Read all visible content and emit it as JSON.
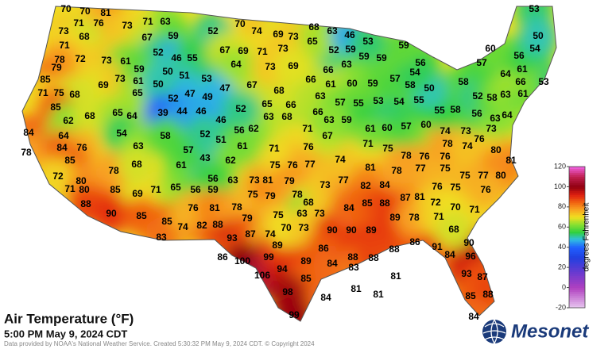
{
  "map": {
    "title": "Air Temperature (°F)",
    "subtitle": "5:00 PM May 9, 2024 CDT",
    "credit": "Data provided by NOAA's National Weather Service. Created 5:30:32 PM May 9, 2024 CDT. © Copyright 2024",
    "brand": "Mesonet",
    "colorbar": {
      "label": "degrees Fahrenheit",
      "lim": [
        -20,
        120
      ],
      "ticks": [
        -20,
        0,
        20,
        40,
        60,
        80,
        100,
        120
      ]
    },
    "stations": {
      "values": [
        70,
        70,
        81,
        71,
        76,
        73,
        71,
        63,
        73,
        68,
        67,
        59,
        71,
        72,
        78,
        73,
        61,
        52,
        46,
        55,
        79,
        69,
        73,
        61,
        59,
        50,
        51,
        53,
        85,
        71,
        75,
        68,
        65,
        50,
        52,
        47,
        49,
        85,
        62,
        68,
        65,
        64,
        39,
        44,
        46,
        46,
        84,
        64,
        54,
        78,
        84,
        76,
        85,
        63,
        58,
        72,
        80,
        71,
        80,
        85,
        69,
        71,
        65,
        56,
        59,
        78,
        68,
        61,
        43,
        57,
        52,
        51,
        62,
        63,
        56,
        73,
        88,
        90,
        85,
        85,
        74,
        82,
        88,
        83,
        76,
        81,
        78,
        79,
        93,
        87,
        74,
        75,
        79,
        75,
        81,
        75,
        76,
        77,
        71,
        76,
        79,
        78,
        68,
        63,
        73,
        86,
        100,
        99,
        106,
        94,
        89,
        85,
        98,
        99,
        89,
        70,
        73,
        90,
        90,
        89,
        86,
        84,
        88,
        83,
        88,
        88,
        86,
        91,
        84,
        90,
        96,
        93,
        87,
        85,
        88,
        84,
        81,
        81,
        81,
        84,
        73,
        77,
        82,
        84,
        81,
        74,
        84,
        85,
        88,
        87,
        81,
        76,
        75,
        89,
        78,
        71,
        72,
        70,
        71,
        68,
        78,
        77,
        75,
        76,
        76,
        75,
        77,
        80,
        81,
        76,
        75,
        78,
        47,
        56,
        62,
        63,
        68,
        71,
        65,
        66,
        68,
        67,
        52,
        61,
        67,
        59,
        71,
        61,
        60,
        57,
        60,
        74,
        73,
        76,
        80,
        78,
        74,
        73,
        64,
        56,
        63,
        58,
        55,
        55,
        54,
        53,
        55,
        57,
        63,
        66,
        63,
        59,
        60,
        61,
        66,
        57,
        58,
        50,
        58,
        52,
        58,
        63,
        66,
        53,
        61,
        61,
        64,
        56,
        54,
        57,
        60,
        56,
        54,
        59,
        59,
        63,
        66,
        52,
        59,
        68,
        63,
        46,
        53,
        59,
        53,
        50,
        70,
        74,
        69,
        73,
        65,
        52,
        67,
        69,
        71,
        73,
        64,
        73,
        69
      ]
    }
  }
}
